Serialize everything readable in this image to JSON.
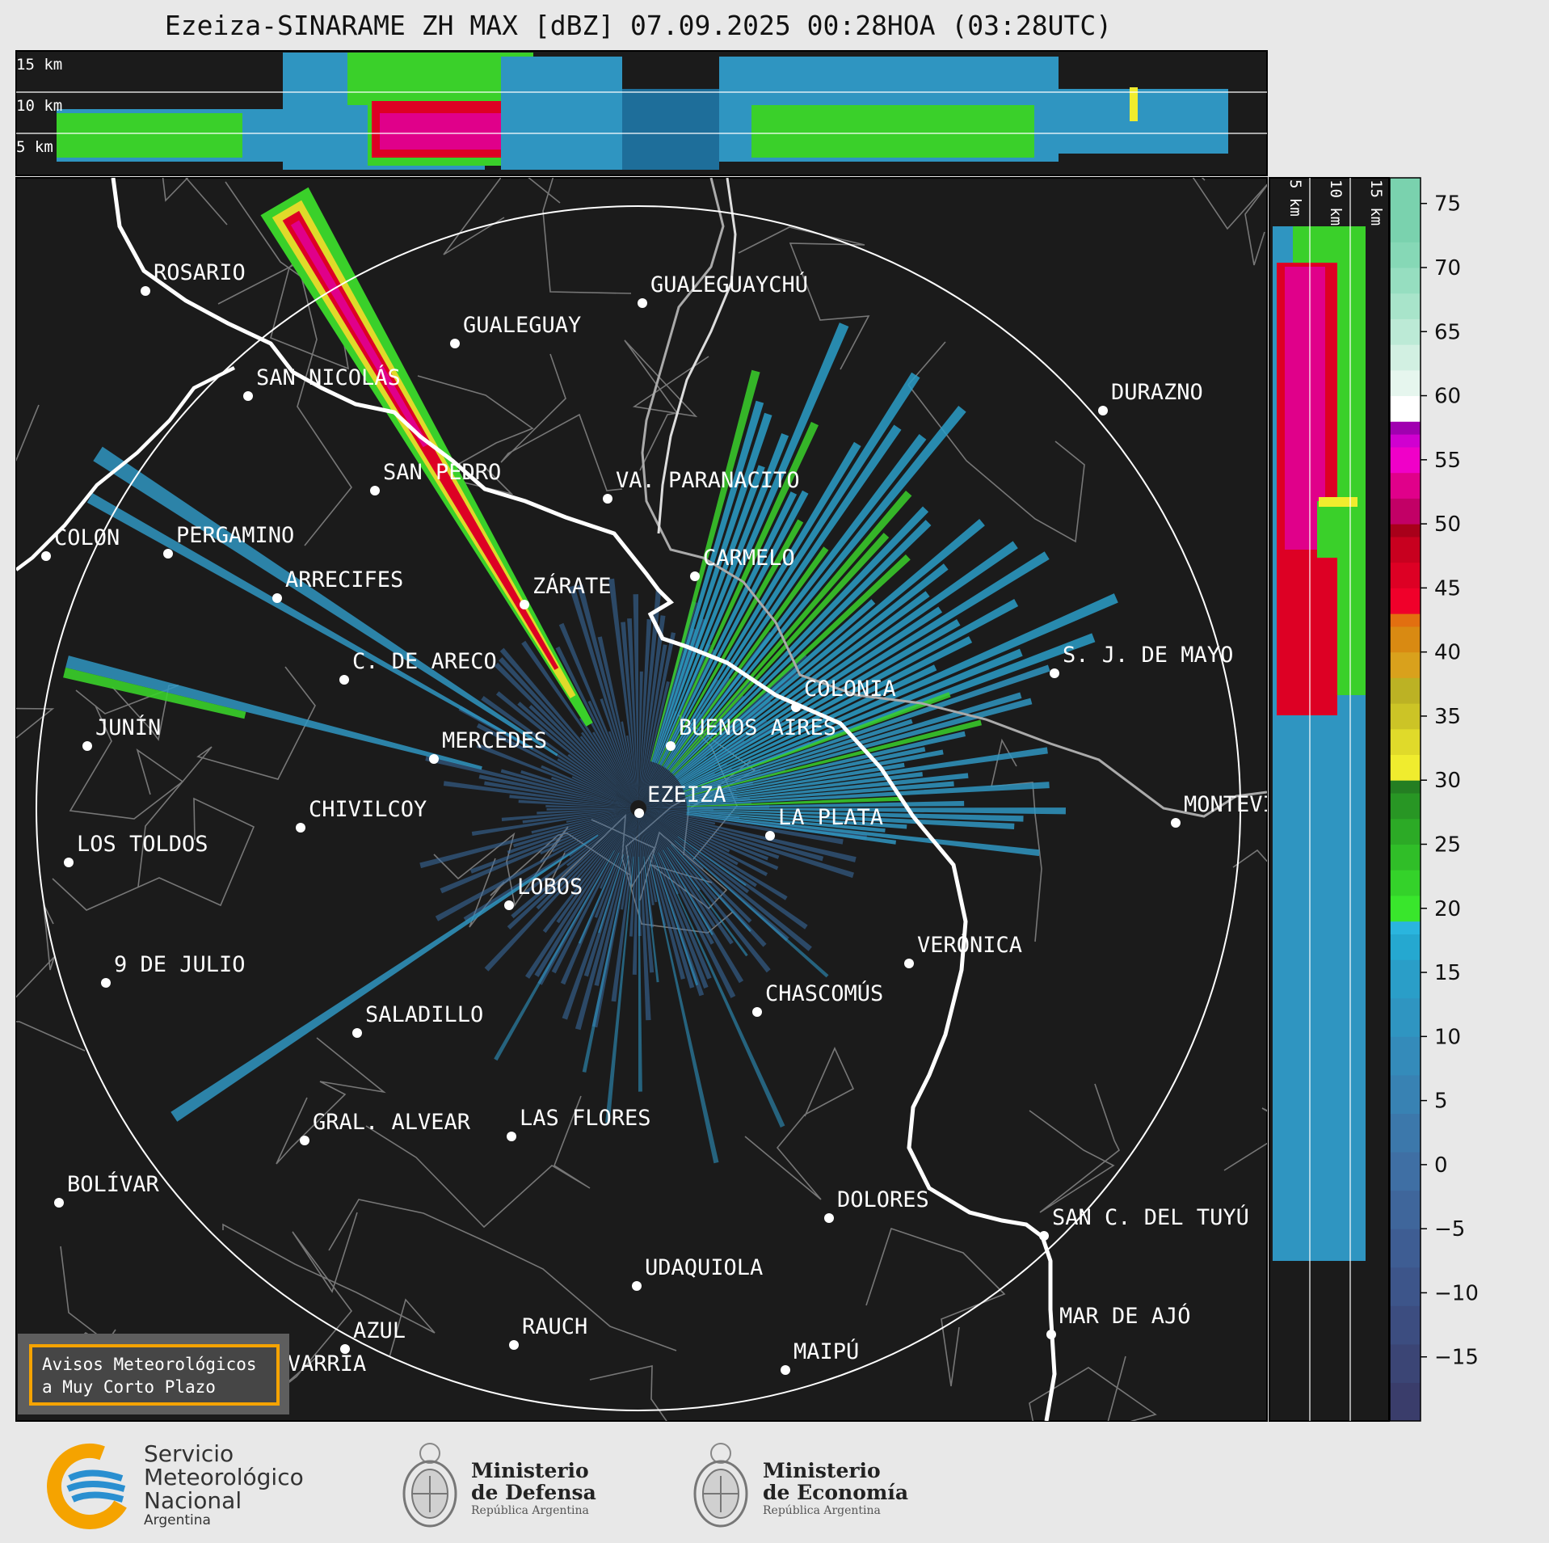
{
  "title": "Ezeiza-SINARAME ZH MAX [dBZ] 07.09.2025 00:28HOA (03:28UTC)",
  "height_labels_top": [
    "15 km",
    "10 km",
    "5 km"
  ],
  "height_labels_side": [
    "5 km",
    "10 km",
    "15 km"
  ],
  "colorbar": {
    "unit": "dBZ",
    "ticks": [
      "75",
      "70",
      "65",
      "60",
      "55",
      "50",
      "45",
      "40",
      "35",
      "30",
      "25",
      "20",
      "15",
      "10",
      "5",
      "0",
      "−5",
      "−10",
      "−15"
    ],
    "range": [
      -20,
      77
    ]
  },
  "cities": [
    {
      "name": "ROSARIO"
    },
    {
      "name": "GUALEGUAYCHÚ"
    },
    {
      "name": "GUALEGUAY"
    },
    {
      "name": "SAN NICOLÁS"
    },
    {
      "name": "DURAZNO"
    },
    {
      "name": "SAN PEDRO"
    },
    {
      "name": "VA. PARANACITO"
    },
    {
      "name": "COLON"
    },
    {
      "name": "PERGAMINO"
    },
    {
      "name": "CARMELO"
    },
    {
      "name": "ARRECIFES"
    },
    {
      "name": "ZÁRATE"
    },
    {
      "name": "S. J. DE MAYO"
    },
    {
      "name": "C. DE ARECO"
    },
    {
      "name": "COLONIA"
    },
    {
      "name": "JUNÍN"
    },
    {
      "name": "BUENOS AIRES"
    },
    {
      "name": "MERCEDES"
    },
    {
      "name": "EZEIZA"
    },
    {
      "name": "MONTEVIDEO"
    },
    {
      "name": "CHIVILCOY"
    },
    {
      "name": "LA PLATA"
    },
    {
      "name": "LOS TOLDOS"
    },
    {
      "name": "LOBOS"
    },
    {
      "name": "VERÓNICA"
    },
    {
      "name": "9 DE JULIO"
    },
    {
      "name": "CHASCOMÚS"
    },
    {
      "name": "SALADILLO"
    },
    {
      "name": "GRAL. ALVEAR"
    },
    {
      "name": "LAS FLORES"
    },
    {
      "name": "BOLÍVAR"
    },
    {
      "name": "DOLORES"
    },
    {
      "name": "SAN C. DEL TUYÚ"
    },
    {
      "name": "UDAQUIOLA"
    },
    {
      "name": "MAR DE AJÓ"
    },
    {
      "name": "AZUL"
    },
    {
      "name": "RAUCH"
    },
    {
      "name": "MAIPÚ"
    },
    {
      "name": "OLAVARRÍA"
    }
  ],
  "warning_box": {
    "line1": "Avisos Meteorológicos",
    "line2": "a Muy Corto Plazo",
    "border_color": "#f5a300"
  },
  "footer": {
    "smn": {
      "line1": "Servicio",
      "line2": "Meteorológico",
      "line3": "Nacional",
      "line4": "Argentina"
    },
    "defensa": {
      "line1": "Ministerio",
      "line2": "de Defensa",
      "line3": "República Argentina"
    },
    "economia": {
      "line1": "Ministerio",
      "line2": "de Economía",
      "line3": "República Argentina"
    }
  },
  "colors": {
    "map_bg": "#1b1b1b",
    "footer_bg": "#e8e8e8",
    "smn_blue": "#2a8fd0",
    "smn_orange": "#f5a300"
  }
}
